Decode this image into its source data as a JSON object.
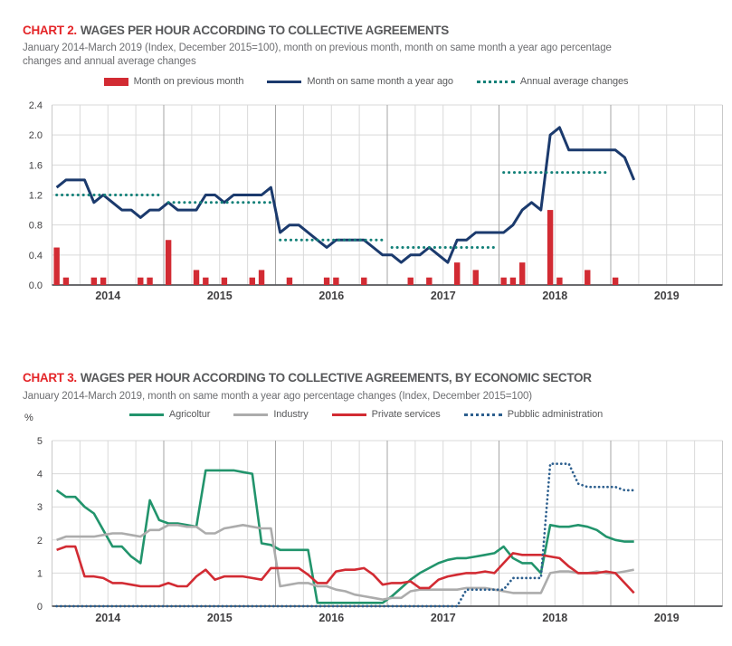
{
  "colors": {
    "accent_red": "#e42528",
    "title_gray": "#58595b",
    "subtitle_gray": "#6d6e71",
    "axis_text": "#414042"
  },
  "chart_data": [
    {
      "id": "chart2",
      "type": "bar",
      "title_prefix": "CHART 2.",
      "title": "WAGES PER HOUR ACCORDING TO COLLECTIVE AGREEMENTS",
      "subtitle": "January 2014-March 2019 (Index, December 2015=100), month on previous month, month on same month a year ago percentage changes and annual average changes",
      "x_start": "2014-01",
      "x_end": "2019-03",
      "x_year_labels": [
        "2014",
        "2015",
        "2016",
        "2017",
        "2018",
        "2019"
      ],
      "ylim": [
        0,
        2.4
      ],
      "yticks": [
        "0.0",
        "0.4",
        "0.8",
        "1.2",
        "1.6",
        "2.0",
        "2.4"
      ],
      "grid": "quarterly",
      "legend_position": "top",
      "series": [
        {
          "name": "Month on previous month",
          "type": "bar",
          "color": "#d22b33",
          "values": [
            0.5,
            0.1,
            0,
            0,
            0.1,
            0.1,
            0,
            0,
            0,
            0.1,
            0.1,
            0,
            0.6,
            0,
            0,
            0.2,
            0.1,
            0,
            0.1,
            0,
            0,
            0.1,
            0.2,
            0,
            0,
            0.1,
            0,
            0,
            0,
            0.1,
            0.1,
            0,
            0,
            0.1,
            0,
            0,
            0,
            0,
            0.1,
            0,
            0.1,
            0,
            0,
            0.3,
            0,
            0.2,
            0,
            0,
            0.1,
            0.1,
            0.3,
            0,
            0,
            1.0,
            0.1,
            0,
            0,
            0.2,
            0,
            0,
            0.1,
            0,
            0
          ]
        },
        {
          "name": "Month on same month a year ago",
          "type": "line",
          "color": "#1b3a6d",
          "values": [
            1.3,
            1.4,
            1.4,
            1.4,
            1.1,
            1.2,
            1.1,
            1.0,
            1.0,
            0.9,
            1.0,
            1.0,
            1.1,
            1.0,
            1.0,
            1.0,
            1.2,
            1.2,
            1.1,
            1.2,
            1.2,
            1.2,
            1.2,
            1.3,
            0.7,
            0.8,
            0.8,
            0.7,
            0.6,
            0.5,
            0.6,
            0.6,
            0.6,
            0.6,
            0.5,
            0.4,
            0.4,
            0.3,
            0.4,
            0.4,
            0.5,
            0.4,
            0.3,
            0.6,
            0.6,
            0.7,
            0.7,
            0.7,
            0.7,
            0.8,
            1.0,
            1.1,
            1.0,
            2.0,
            2.1,
            1.8,
            1.8,
            1.8,
            1.8,
            1.8,
            1.8,
            1.7,
            1.4
          ]
        },
        {
          "name": "Annual average changes",
          "type": "annual-dotted",
          "color": "#128078",
          "segments": [
            {
              "year": "2014",
              "value": 1.2
            },
            {
              "year": "2015",
              "value": 1.1
            },
            {
              "year": "2016",
              "value": 0.6
            },
            {
              "year": "2017",
              "value": 0.5
            },
            {
              "year": "2018",
              "value": 1.5
            }
          ]
        }
      ]
    },
    {
      "id": "chart3",
      "type": "line",
      "title_prefix": "CHART 3.",
      "title": "WAGES PER HOUR ACCORDING TO COLLECTIVE AGREEMENTS, BY ECONOMIC SECTOR",
      "subtitle": "January 2014-March 2019, month on same month a year ago percentage changes (Index, December 2015=100)",
      "ylabel": "%",
      "x_start": "2014-01",
      "x_end": "2019-03",
      "x_year_labels": [
        "2014",
        "2015",
        "2016",
        "2017",
        "2018",
        "2019"
      ],
      "ylim": [
        0,
        5
      ],
      "yticks": [
        "0",
        "1",
        "2",
        "3",
        "4",
        "5"
      ],
      "grid": "quarterly",
      "legend_position": "top",
      "series": [
        {
          "name": "Agricoltur",
          "type": "line",
          "style": "solid",
          "color": "#22946c",
          "values": [
            3.5,
            3.3,
            3.3,
            3.0,
            2.8,
            2.3,
            1.8,
            1.8,
            1.5,
            1.3,
            3.2,
            2.6,
            2.5,
            2.5,
            2.45,
            2.4,
            4.1,
            4.1,
            4.1,
            4.1,
            4.05,
            4.0,
            1.9,
            1.85,
            1.7,
            1.7,
            1.7,
            1.7,
            0.1,
            0.1,
            0.1,
            0.1,
            0.1,
            0.1,
            0.1,
            0.1,
            0.3,
            0.55,
            0.8,
            1.0,
            1.15,
            1.3,
            1.4,
            1.45,
            1.45,
            1.5,
            1.55,
            1.6,
            1.8,
            1.45,
            1.3,
            1.3,
            1.0,
            2.45,
            2.4,
            2.4,
            2.45,
            2.4,
            2.3,
            2.1,
            2.0,
            1.95,
            1.95
          ]
        },
        {
          "name": "Industry",
          "type": "line",
          "style": "solid",
          "color": "#acacac",
          "values": [
            2.0,
            2.1,
            2.1,
            2.1,
            2.1,
            2.15,
            2.2,
            2.2,
            2.15,
            2.1,
            2.3,
            2.3,
            2.45,
            2.45,
            2.4,
            2.4,
            2.2,
            2.2,
            2.35,
            2.4,
            2.45,
            2.4,
            2.35,
            2.35,
            0.6,
            0.65,
            0.7,
            0.7,
            0.6,
            0.6,
            0.5,
            0.45,
            0.35,
            0.3,
            0.25,
            0.2,
            0.25,
            0.25,
            0.45,
            0.5,
            0.5,
            0.5,
            0.5,
            0.5,
            0.55,
            0.55,
            0.55,
            0.5,
            0.45,
            0.4,
            0.4,
            0.4,
            0.4,
            1.0,
            1.05,
            1.05,
            1.0,
            1.0,
            1.05,
            1.0,
            1.0,
            1.05,
            1.1
          ]
        },
        {
          "name": "Private services",
          "type": "line",
          "style": "solid",
          "color": "#d22b33",
          "values": [
            1.7,
            1.8,
            1.8,
            0.9,
            0.9,
            0.85,
            0.7,
            0.7,
            0.65,
            0.6,
            0.6,
            0.6,
            0.7,
            0.6,
            0.6,
            0.9,
            1.1,
            0.8,
            0.9,
            0.9,
            0.9,
            0.85,
            0.8,
            1.15,
            1.15,
            1.15,
            1.15,
            0.95,
            0.7,
            0.7,
            1.05,
            1.1,
            1.1,
            1.15,
            0.95,
            0.65,
            0.7,
            0.7,
            0.75,
            0.55,
            0.55,
            0.8,
            0.9,
            0.95,
            1.0,
            1.0,
            1.05,
            1.0,
            1.3,
            1.6,
            1.55,
            1.55,
            1.55,
            1.5,
            1.45,
            1.2,
            1.0,
            1.0,
            1.0,
            1.05,
            1.0,
            0.7,
            0.4
          ]
        },
        {
          "name": "Pubblic administration",
          "type": "line",
          "style": "dotted",
          "color": "#2d5f8e",
          "values": [
            0,
            0,
            0,
            0,
            0,
            0,
            0,
            0,
            0,
            0,
            0,
            0,
            0,
            0,
            0,
            0,
            0,
            0,
            0,
            0,
            0,
            0,
            0,
            0,
            0,
            0,
            0,
            0,
            0,
            0,
            0,
            0,
            0,
            0,
            0,
            0,
            0,
            0,
            0,
            0,
            0,
            0,
            0,
            0,
            0.5,
            0.5,
            0.5,
            0.5,
            0.5,
            0.85,
            0.85,
            0.85,
            0.85,
            4.3,
            4.3,
            4.3,
            3.7,
            3.6,
            3.6,
            3.6,
            3.6,
            3.5,
            3.5
          ]
        }
      ]
    }
  ]
}
